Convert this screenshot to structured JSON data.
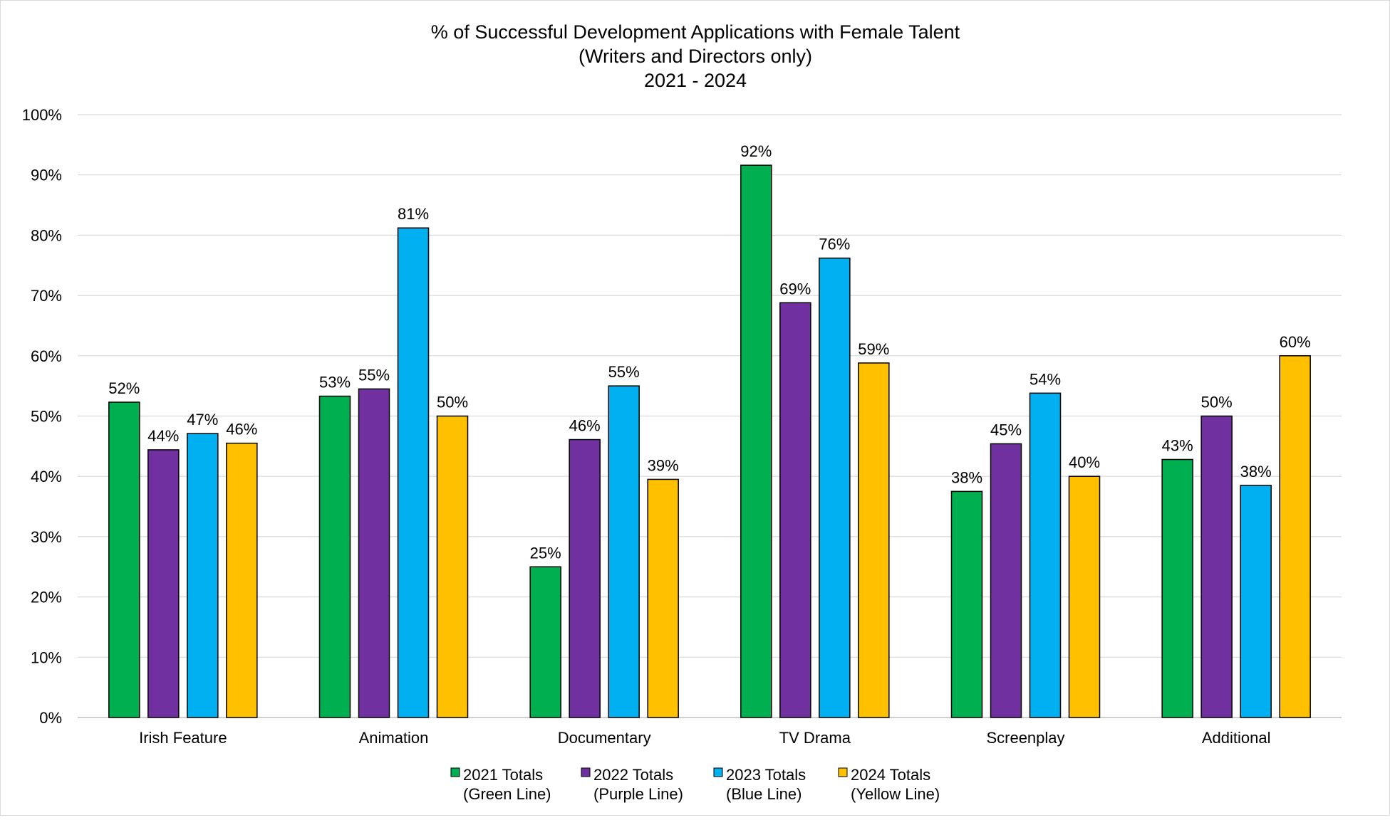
{
  "chart_data": {
    "type": "bar",
    "title": [
      "% of Successful Development Applications with Female Talent",
      "(Writers and Directors only)",
      "2021 - 2024"
    ],
    "categories": [
      "Irish Feature",
      "Animation",
      "Documentary",
      "TV Drama",
      "Screenplay",
      "Additional"
    ],
    "y_ticks": [
      "0%",
      "10%",
      "20%",
      "30%",
      "40%",
      "50%",
      "60%",
      "70%",
      "80%",
      "90%",
      "100%"
    ],
    "ylim": [
      0,
      100
    ],
    "grid": true,
    "legend_position": "bottom",
    "series": [
      {
        "name": [
          "2021 Totals",
          "(Green Line)"
        ],
        "color": "#00b050",
        "values": [
          52.3,
          53.3,
          25.0,
          91.6,
          37.5,
          42.8
        ],
        "labels": [
          "52%",
          "53%",
          "25%",
          "92%",
          "38%",
          "43%"
        ]
      },
      {
        "name": [
          "2022 Totals",
          "(Purple Line)"
        ],
        "color": "#7030a0",
        "values": [
          44.4,
          54.5,
          46.1,
          68.8,
          45.4,
          50.0
        ],
        "labels": [
          "44%",
          "55%",
          "46%",
          "69%",
          "45%",
          "50%"
        ]
      },
      {
        "name": [
          "2023 Totals",
          "(Blue Line)"
        ],
        "color": "#00b0f0",
        "values": [
          47.1,
          81.2,
          55.0,
          76.2,
          53.8,
          38.5
        ],
        "labels": [
          "47%",
          "81%",
          "55%",
          "76%",
          "54%",
          "38%"
        ]
      },
      {
        "name": [
          "2024 Totals",
          "(Yellow Line)"
        ],
        "color": "#ffc000",
        "values": [
          45.5,
          50.0,
          39.5,
          58.8,
          40.0,
          60.0
        ],
        "labels": [
          "46%",
          "50%",
          "39%",
          "59%",
          "40%",
          "60%"
        ]
      }
    ]
  }
}
